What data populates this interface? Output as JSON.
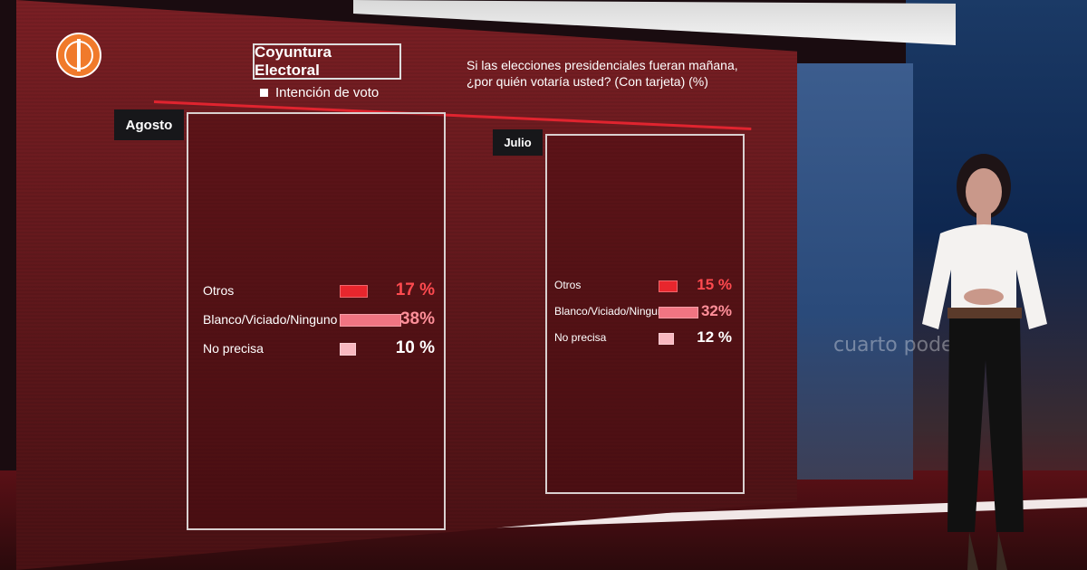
{
  "channel": {
    "logo_icon": "america-tv-globe-icon"
  },
  "header": {
    "title": "Coyuntura Electoral",
    "subtitle": "Intención de voto",
    "question": "Si las elecciones presidenciales fueran mañana, ¿por quién votaría usted? (Con tarjeta) (%)"
  },
  "side_panel": {
    "text": "cuarto poder"
  },
  "chart_data": [
    {
      "type": "bar",
      "title": "Agosto",
      "categories": [
        "Otros",
        "Blanco/Viciado/Ninguno",
        "No precisa"
      ],
      "values": [
        17,
        38,
        10
      ],
      "labels": [
        "17 %",
        "38%",
        "10 %"
      ],
      "colors": [
        "#e8262d",
        "#f07582",
        "#f8b8c0"
      ],
      "value_colors": [
        "#ff4a4f",
        "#ff8f99",
        "#ffffff"
      ]
    },
    {
      "type": "bar",
      "title": "Julio",
      "categories": [
        "Otros",
        "Blanco/Viciado/Ninguno",
        "No precisa"
      ],
      "values": [
        15,
        32,
        12
      ],
      "labels": [
        "15 %",
        "32%",
        "12 %"
      ],
      "colors": [
        "#e8262d",
        "#f07582",
        "#f8b8c0"
      ],
      "value_colors": [
        "#ff4a4f",
        "#ff8f99",
        "#ffffff"
      ]
    }
  ]
}
